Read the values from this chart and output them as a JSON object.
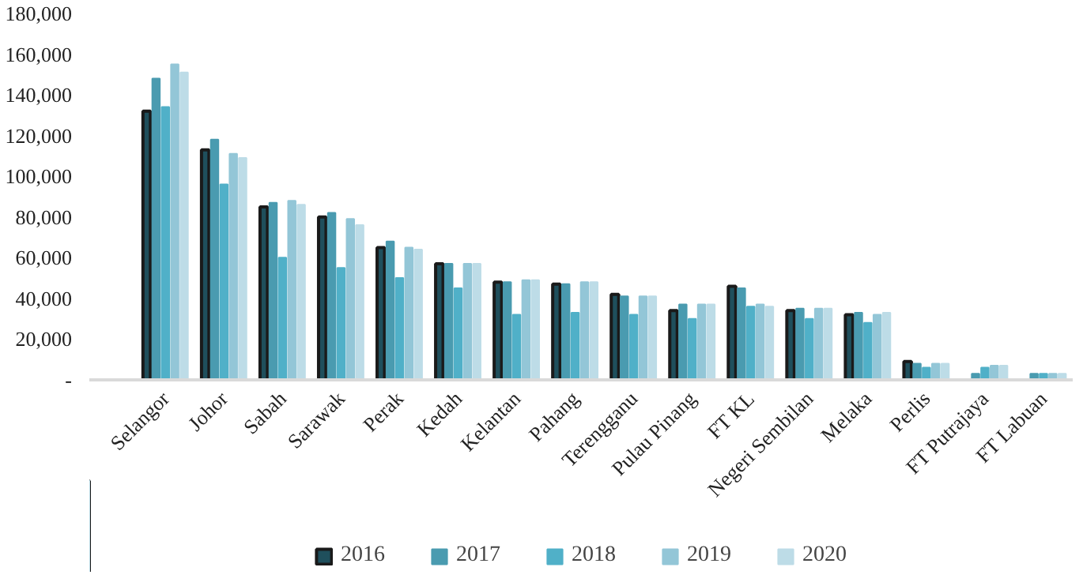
{
  "chart_data": {
    "type": "bar",
    "categories": [
      "Selangor",
      "Johor",
      "Sabah",
      "Sarawak",
      "Perak",
      "Kedah",
      "Kelantan",
      "Pahang",
      "Terengganu",
      "Pulau Pinang",
      "FT KL",
      "Negeri Sembilan",
      "Melaka",
      "Perlis",
      "FT Putrajaya",
      "FT Labuan"
    ],
    "series": [
      {
        "name": "2016",
        "color": "#1f4f5c",
        "values": [
          132000,
          113000,
          85000,
          80000,
          65000,
          57000,
          48000,
          47000,
          42000,
          34000,
          46000,
          34000,
          32000,
          9000,
          null,
          null
        ]
      },
      {
        "name": "2017",
        "color": "#4a9bb0",
        "values": [
          148000,
          118000,
          87000,
          82000,
          68000,
          57000,
          48000,
          47000,
          41000,
          37000,
          45000,
          35000,
          33000,
          8000,
          3000,
          3000
        ]
      },
      {
        "name": "2018",
        "color": "#50b0c8",
        "values": [
          134000,
          96000,
          60000,
          55000,
          50000,
          45000,
          32000,
          33000,
          32000,
          30000,
          36000,
          30000,
          28000,
          6000,
          6000,
          3000
        ]
      },
      {
        "name": "2019",
        "color": "#93c6d7",
        "values": [
          155000,
          111000,
          88000,
          79000,
          65000,
          57000,
          49000,
          48000,
          41000,
          37000,
          37000,
          35000,
          32000,
          8000,
          7000,
          3000
        ]
      },
      {
        "name": "2020",
        "color": "#bddce7",
        "values": [
          151000,
          109000,
          86000,
          76000,
          64000,
          57000,
          49000,
          48000,
          41000,
          37000,
          36000,
          35000,
          33000,
          8000,
          7000,
          3000
        ]
      }
    ],
    "ylim": [
      0,
      180000
    ],
    "yticks": [
      {
        "value": 0,
        "label": "-"
      },
      {
        "value": 20000,
        "label": "20,000"
      },
      {
        "value": 40000,
        "label": "40,000"
      },
      {
        "value": 60000,
        "label": "60,000"
      },
      {
        "value": 80000,
        "label": "80,000"
      },
      {
        "value": 100000,
        "label": "100,000"
      },
      {
        "value": 120000,
        "label": "120,000"
      },
      {
        "value": 140000,
        "label": "140,000"
      },
      {
        "value": 160000,
        "label": "160,000"
      },
      {
        "value": 180000,
        "label": "180,000"
      }
    ],
    "grid": false,
    "legend": "bottom"
  }
}
